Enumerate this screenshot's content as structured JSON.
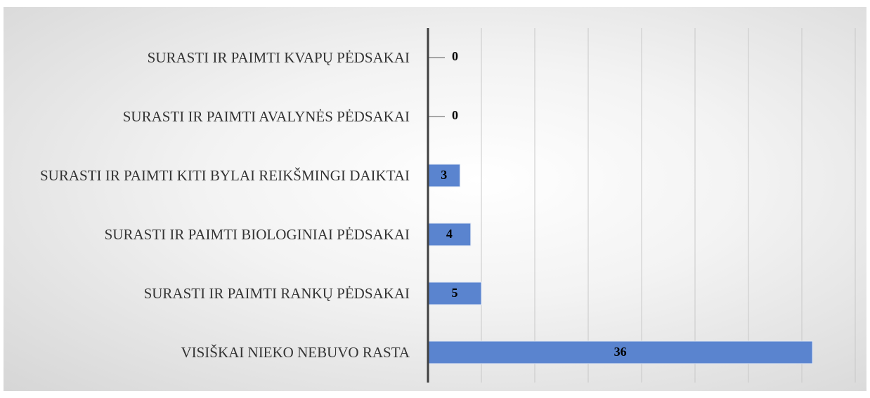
{
  "chart_data": {
    "type": "bar",
    "orientation": "horizontal",
    "categories": [
      "SURASTI IR PAIMTI KVAPŲ PĖDSAKAI",
      "SURASTI IR PAIMTI AVALYNĖS PĖDSAKAI",
      "SURASTI IR PAIMTI KITI BYLAI REIKŠMINGI DAIKTAI",
      "SURASTI IR PAIMTI BIOLOGINIAI PĖDSAKAI",
      "SURASTI IR PAIMTI RANKŲ PĖDSAKAI",
      "VISIŠKAI NIEKO NEBUVO RASTA"
    ],
    "values": [
      0,
      0,
      3,
      4,
      5,
      36
    ],
    "color": "#5a84cf",
    "xlim": [
      0,
      40
    ],
    "xticks": [
      0,
      5,
      10,
      15,
      20,
      25,
      30,
      35,
      40
    ],
    "grid": true
  }
}
